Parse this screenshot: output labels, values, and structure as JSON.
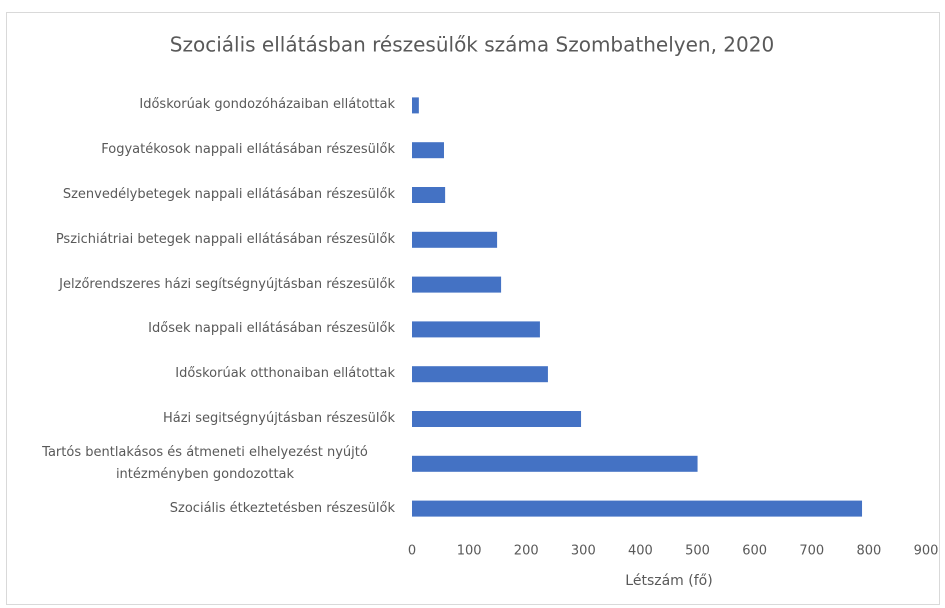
{
  "chart_data": {
    "type": "bar",
    "orientation": "horizontal",
    "title": "Szociális ellátásban részesülők száma Szombathelyen, 2020",
    "xlabel": "Létszám (fő)",
    "categories": [
      "Időskorúak gondozóházaiban ellátottak",
      "Fogyatékosok nappali ellátásában részesülők",
      "Szenvedélybetegek nappali ellátásában részesülők",
      "Pszichiátriai betegek nappali ellátásában részesülők",
      "Jelzőrendszeres házi segítségnyújtásban részesülők",
      "Idősek nappali ellátásában részesülők",
      "Időskorúak otthonaiban ellátottak",
      "Házi segitségnyújtásban részesülők",
      "Tartós bentlakásos és átmeneti elhelyezést nyújtó intézményben gondozottak",
      "Szociális étkeztetésben részesülők"
    ],
    "values": [
      12,
      56,
      58,
      149,
      156,
      224,
      238,
      296,
      500,
      788
    ],
    "color": "#4472c4",
    "xlim": [
      0,
      900
    ],
    "xticks": [
      0,
      100,
      200,
      300,
      400,
      500,
      600,
      700,
      800,
      900
    ],
    "grid": false
  }
}
